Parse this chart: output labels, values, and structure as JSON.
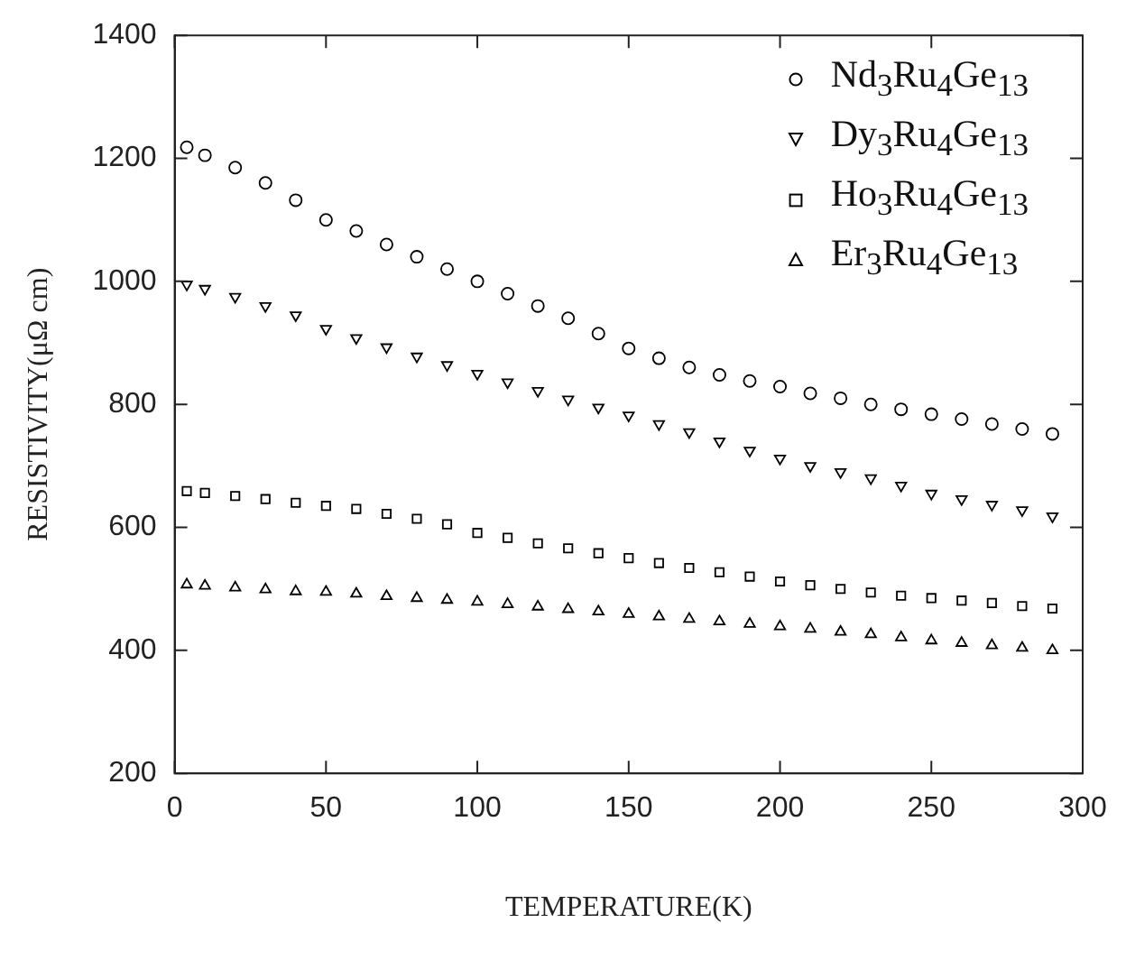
{
  "chart_data": {
    "type": "scatter",
    "xlabel": "TEMPERATURE(K)",
    "ylabel": "RESISTIVITY(μΩ cm)",
    "x": [
      4,
      10,
      20,
      30,
      40,
      50,
      60,
      70,
      80,
      90,
      100,
      110,
      120,
      130,
      140,
      150,
      160,
      170,
      180,
      190,
      200,
      210,
      220,
      230,
      240,
      250,
      260,
      270,
      280,
      290
    ],
    "series": [
      {
        "name": "Nd$_{3}$Ru$_{4}$Ge$_{13}$",
        "color": "#000000",
        "marker": "circle",
        "values": [
          1218,
          1205,
          1185,
          1160,
          1132,
          1100,
          1082,
          1060,
          1040,
          1020,
          1000,
          980,
          960,
          940,
          915,
          891,
          875,
          860,
          848,
          838,
          829,
          818,
          810,
          800,
          792,
          784,
          776,
          768,
          760,
          752
        ]
      },
      {
        "name": "Dy$_{3}$Ru$_{4}$Ge$_{13}$",
        "color": "#000000",
        "marker": "triangle-down",
        "values": [
          995,
          988,
          975,
          960,
          945,
          923,
          908,
          893,
          878,
          864,
          850,
          836,
          822,
          808,
          795,
          782,
          768,
          755,
          740,
          725,
          712,
          700,
          690,
          680,
          668,
          655,
          646,
          637,
          628,
          618
        ]
      },
      {
        "name": "Ho$_{3}$Ru$_{4}$Ge$_{13}$",
        "color": "#000000",
        "marker": "square",
        "values": [
          659,
          656,
          651,
          646,
          640,
          635,
          630,
          622,
          614,
          605,
          591,
          583,
          574,
          566,
          558,
          550,
          542,
          534,
          527,
          520,
          512,
          506,
          500,
          494,
          489,
          485,
          481,
          477,
          472,
          468
        ]
      },
      {
        "name": "Er$_{3}$Ru$_{4}$Ge$_{13}$",
        "color": "#000000",
        "marker": "triangle",
        "values": [
          507,
          505,
          502,
          499,
          496,
          495,
          492,
          488,
          485,
          482,
          479,
          475,
          471,
          467,
          463,
          459,
          455,
          451,
          447,
          443,
          439,
          435,
          430,
          426,
          421,
          416,
          412,
          408,
          404,
          400
        ]
      }
    ],
    "xlim": [
      0,
      300
    ],
    "xticks": [
      0,
      50,
      100,
      150,
      200,
      250,
      300
    ],
    "ylim": [
      200,
      1400
    ],
    "yticks": [
      200,
      400,
      600,
      800,
      1000,
      1200,
      1400
    ],
    "grid": false,
    "legend": "top right"
  }
}
